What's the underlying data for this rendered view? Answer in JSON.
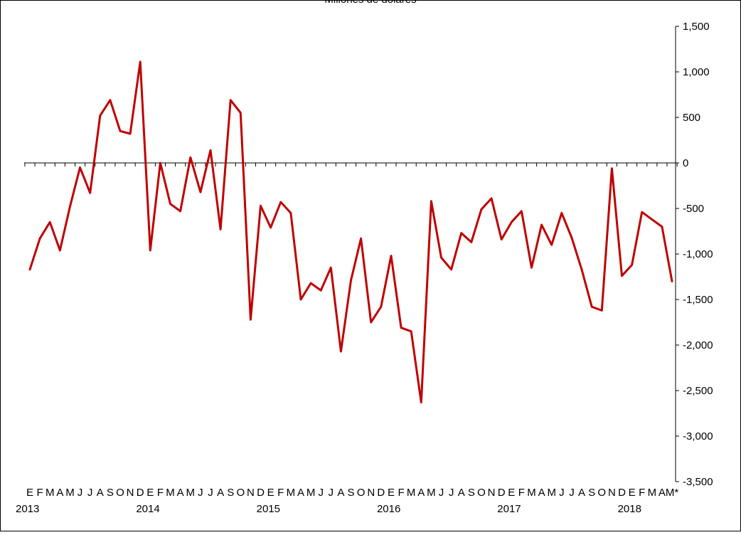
{
  "chart_data": {
    "type": "line",
    "title": "Millones de dólares",
    "xlabel": "",
    "ylabel": "",
    "ylim": [
      -3500,
      1500
    ],
    "y_ticks": [
      1500,
      1000,
      500,
      0,
      -500,
      -1000,
      -1500,
      -2000,
      -2500,
      -3000,
      -3500
    ],
    "y_tick_labels": [
      "1,500",
      "1,000",
      "500",
      "0",
      "-500",
      "-1,000",
      "-1,500",
      "-2,000",
      "-2,500",
      "-3,000",
      "-3,500"
    ],
    "y_axis_side": "right",
    "grid": false,
    "legend": "none",
    "line_color": "#C00000",
    "x_month_labels": [
      "E",
      "F",
      "M",
      "A",
      "M",
      "J",
      "J",
      "A",
      "S",
      "O",
      "N",
      "D",
      "E",
      "F",
      "M",
      "A",
      "M",
      "J",
      "J",
      "A",
      "S",
      "O",
      "N",
      "D",
      "E",
      "F",
      "M",
      "A",
      "M",
      "J",
      "J",
      "A",
      "S",
      "O",
      "N",
      "D",
      "E",
      "F",
      "M",
      "A",
      "M",
      "J",
      "J",
      "A",
      "S",
      "O",
      "N",
      "D",
      "E",
      "F",
      "M",
      "A",
      "M",
      "J",
      "J",
      "A",
      "S",
      "O",
      "N",
      "D",
      "E",
      "F",
      "M",
      "A",
      "M*"
    ],
    "x_year_labels": [
      "2013",
      "2014",
      "2015",
      "2016",
      "2017",
      "2018"
    ],
    "series": [
      {
        "values": [
          -1170,
          -830,
          -650,
          -960,
          -480,
          -50,
          -330,
          520,
          690,
          350,
          320,
          1110,
          -960,
          0,
          -450,
          -530,
          60,
          -320,
          140,
          -730,
          690,
          550,
          -1720,
          -470,
          -710,
          -430,
          -550,
          -1500,
          -1320,
          -1400,
          -1150,
          -2070,
          -1290,
          -830,
          -1750,
          -1580,
          -1020,
          -1810,
          -1850,
          -2630,
          -420,
          -1040,
          -1170,
          -770,
          -870,
          -510,
          -390,
          -840,
          -650,
          -530,
          -1150,
          -680,
          -900,
          -550,
          -820,
          -1170,
          -1580,
          -1620,
          -60,
          -1240,
          -1120,
          -540,
          -620,
          -700,
          -1300
        ]
      }
    ]
  }
}
